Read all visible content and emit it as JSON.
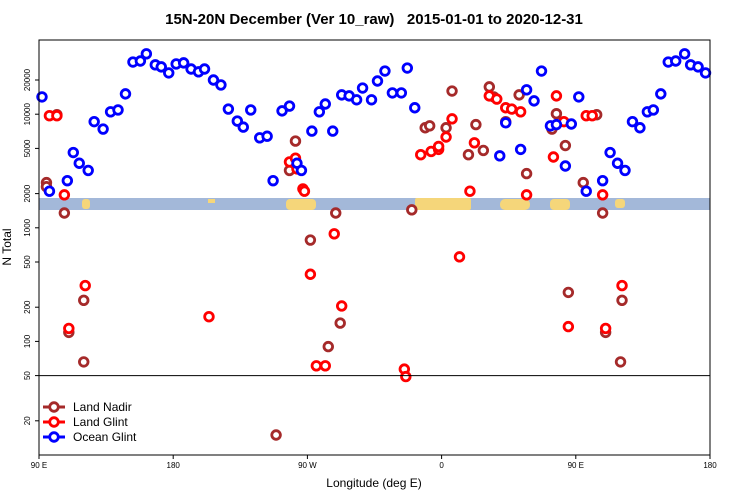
{
  "chart_data": {
    "type": "scatter",
    "title": "15N-20N December (Ver 10_raw)   2015-01-01 to 2020-12-31",
    "xlabel": "Longitude (deg E)",
    "ylabel": "N Total",
    "xlim": [
      90,
      540
    ],
    "xticks": [
      {
        "value": 90,
        "label": "90 E"
      },
      180,
      {
        "value": 270,
        "label": "90 W"
      },
      {
        "value": 360,
        "label": "0"
      },
      {
        "value": 450,
        "label": "90 E"
      },
      {
        "value": 540,
        "label": "180"
      }
    ],
    "ylim": [
      10,
      45000
    ],
    "yscale": "log",
    "yticks": [
      20,
      50,
      100,
      200,
      500,
      1000,
      2000,
      5000,
      10000,
      20000
    ],
    "hline": 50,
    "legend": "bottom-left",
    "series": [
      {
        "name": "Land Nadir",
        "color": "#a52a2a",
        "x": [
          95,
          95,
          102,
          107,
          120,
          110,
          120,
          262,
          258,
          289,
          272,
          292,
          284,
          340,
          349,
          352,
          363,
          367,
          378,
          383,
          388,
          392,
          395,
          403,
          412,
          417,
          434,
          437,
          443,
          445,
          455,
          464,
          468,
          470,
          481,
          480,
          249
        ],
        "values": [
          2500,
          2300,
          9900,
          1350,
          230,
          120,
          66,
          5800,
          3200,
          1350,
          780,
          145,
          90,
          1440,
          7600,
          7900,
          7600,
          16000,
          4400,
          8100,
          4800,
          17400,
          14200,
          8600,
          14800,
          3000,
          7400,
          10100,
          5300,
          270,
          2500,
          9900,
          1350,
          120,
          230,
          66,
          15
        ]
      },
      {
        "name": "Land Glint",
        "color": "#ff0000",
        "x": [
          97,
          102,
          107,
          110,
          121,
          204,
          258,
          262,
          263,
          267,
          268,
          272,
          276,
          282,
          288,
          293,
          335,
          336,
          346,
          353,
          358,
          358,
          363,
          367,
          372,
          379,
          382,
          392,
          397,
          403,
          407,
          413,
          417,
          435,
          437,
          442,
          445,
          457,
          461,
          468,
          470,
          481
        ],
        "values": [
          9700,
          9700,
          1950,
          130,
          310,
          165,
          3800,
          4100,
          3300,
          2200,
          2100,
          390,
          61,
          61,
          885,
          205,
          57,
          49,
          4400,
          4700,
          4900,
          5200,
          6300,
          9100,
          555,
          2100,
          5600,
          14500,
          13600,
          11400,
          11100,
          10500,
          1950,
          4200,
          14500,
          8600,
          135,
          9700,
          9700,
          1950,
          130,
          310
        ]
      },
      {
        "name": "Ocean Glint",
        "color": "#0000ff",
        "x": [
          92,
          97,
          109,
          113,
          117,
          123,
          127,
          133,
          138,
          143,
          148,
          153,
          158,
          162,
          168,
          172,
          177,
          182,
          187,
          192,
          197,
          201,
          207,
          212,
          217,
          223,
          227,
          232,
          238,
          243,
          247,
          253,
          258,
          263,
          266,
          273,
          278,
          282,
          287,
          293,
          298,
          303,
          307,
          313,
          317,
          322,
          327,
          333,
          337,
          342,
          399,
          403,
          413,
          417,
          422,
          427,
          433,
          437,
          443,
          447,
          452,
          457,
          468,
          473,
          478,
          483,
          488,
          493,
          498,
          502,
          507,
          512,
          517,
          523,
          527,
          532,
          537
        ],
        "values": [
          14200,
          2100,
          2600,
          4600,
          3700,
          3200,
          8600,
          7400,
          10500,
          10900,
          15100,
          28800,
          29400,
          34000,
          27200,
          26100,
          23100,
          27700,
          28300,
          25000,
          23600,
          25000,
          20000,
          18100,
          11100,
          8700,
          7700,
          10900,
          6200,
          6400,
          2600,
          10700,
          11800,
          3700,
          3200,
          7100,
          10500,
          12300,
          7100,
          14800,
          14500,
          13400,
          17000,
          13400,
          19600,
          24000,
          15400,
          15400,
          25500,
          11400,
          4300,
          8400,
          4900,
          16400,
          13100,
          24000,
          7900,
          8100,
          3500,
          8200,
          14200,
          2100,
          2600,
          4600,
          3700,
          3200,
          8600,
          7600,
          10500,
          10900,
          15100,
          28800,
          29400,
          34000,
          27200,
          26100,
          23100
        ]
      }
    ]
  }
}
